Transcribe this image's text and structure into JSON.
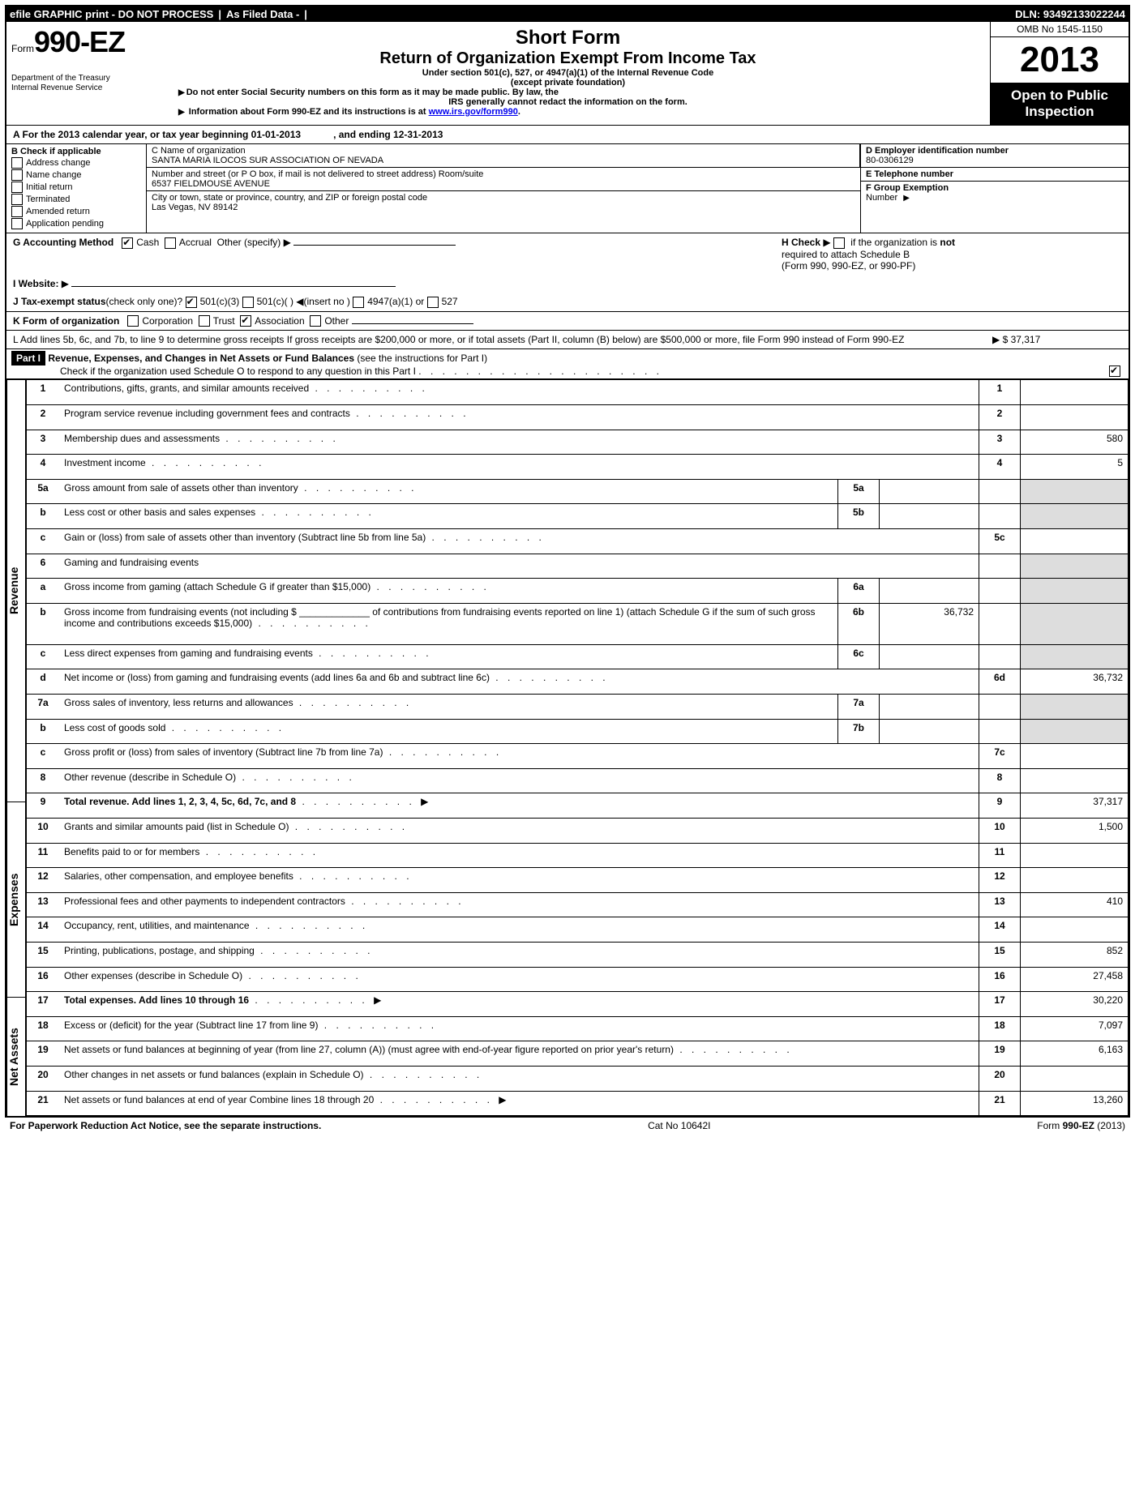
{
  "topbar": {
    "efile": "efile GRAPHIC print - DO NOT PROCESS",
    "asfiled": "As Filed Data -",
    "dln": "DLN: 93492133022244"
  },
  "header": {
    "form_prefix": "Form",
    "form_no": "990-EZ",
    "dept1": "Department of the Treasury",
    "dept2": "Internal Revenue Service",
    "title1": "Short Form",
    "title2": "Return of Organization Exempt From Income Tax",
    "sub1": "Under section 501(c), 527, or 4947(a)(1) of the Internal Revenue Code",
    "sub2": "(except private foundation)",
    "warn1": "Do not enter Social Security numbers on this form as it may be made public. By law, the",
    "warn2": "IRS generally cannot redact the information on the form.",
    "info": "Information about Form 990-EZ and its instructions is at ",
    "info_link": "www.irs.gov/form990",
    "omb": "OMB No 1545-1150",
    "year": "2013",
    "open1": "Open to Public",
    "open2": "Inspection"
  },
  "A": {
    "label": "A  For the 2013 calendar year, or tax year beginning 01-01-2013",
    "ending": ", and ending 12-31-2013"
  },
  "B": {
    "label": "B  Check if applicable",
    "items": [
      "Address change",
      "Name change",
      "Initial return",
      "Terminated",
      "Amended return",
      "Application pending"
    ]
  },
  "C": {
    "name_label": "C Name of organization",
    "name": "SANTA MARIA ILOCOS SUR ASSOCIATION OF NEVADA",
    "street_label": "Number and street (or P  O  box, if mail is not delivered to street address) Room/suite",
    "street": "6537 FIELDMOUSE AVENUE",
    "city_label": "City or town, state or province, country, and ZIP or foreign postal code",
    "city": "Las Vegas, NV  89142"
  },
  "D": {
    "label": "D Employer identification number",
    "value": "80-0306129"
  },
  "E": {
    "label": "E Telephone number",
    "value": ""
  },
  "F": {
    "label": "F Group Exemption",
    "label2": "Number"
  },
  "G": {
    "label": "G Accounting Method",
    "cash": "Cash",
    "accrual": "Accrual",
    "other": "Other (specify)"
  },
  "H": {
    "label1": "H  Check",
    "label2": "if the organization is",
    "not": "not",
    "label3": "required to attach Schedule B",
    "label4": "(Form 990, 990-EZ, or 990-PF)"
  },
  "I": {
    "label": "I Website:"
  },
  "J": {
    "label": "J Tax-exempt status",
    "sub": "(check only one)?",
    "o1": "501(c)(3)",
    "o2": "501(c)(  )",
    "ins": "(insert no )",
    "o3": "4947(a)(1) or",
    "o4": "527"
  },
  "K": {
    "label": "K Form of organization",
    "o1": "Corporation",
    "o2": "Trust",
    "o3": "Association",
    "o4": "Other"
  },
  "L": {
    "text": "L Add lines 5b, 6c, and 7b, to line 9 to determine gross receipts  If gross receipts are $200,000 or more, or if total assets (Part II, column (B) below) are $500,000 or more, file Form 990 instead of Form 990-EZ",
    "amount": "$ 37,317"
  },
  "partI": {
    "title": "Revenue, Expenses, and Changes in Net Assets or Fund Balances",
    "paren": "(see the instructions for Part I)",
    "checkline": "Check if the organization used Schedule O to respond to any question in this Part I"
  },
  "vlabels": {
    "rev": "Revenue",
    "exp": "Expenses",
    "na": "Net Assets"
  },
  "lines": {
    "l1": {
      "n": "1",
      "d": "Contributions, gifts, grants, and similar amounts received",
      "box": "1",
      "v": ""
    },
    "l2": {
      "n": "2",
      "d": "Program service revenue including government fees and contracts",
      "box": "2",
      "v": ""
    },
    "l3": {
      "n": "3",
      "d": "Membership dues and assessments",
      "box": "3",
      "v": "580"
    },
    "l4": {
      "n": "4",
      "d": "Investment income",
      "box": "4",
      "v": "5"
    },
    "l5a": {
      "n": "5a",
      "d": "Gross amount from sale of assets other than inventory",
      "mbox": "5a",
      "mv": ""
    },
    "l5b": {
      "n": "b",
      "d": "Less  cost or other basis and sales expenses",
      "mbox": "5b",
      "mv": ""
    },
    "l5c": {
      "n": "c",
      "d": "Gain or (loss) from sale of assets other than inventory (Subtract line 5b from line 5a)",
      "box": "5c",
      "v": ""
    },
    "l6": {
      "n": "6",
      "d": "Gaming and fundraising events"
    },
    "l6a": {
      "n": "a",
      "d": "Gross income from gaming (attach Schedule G if greater than $15,000)",
      "mbox": "6a",
      "mv": ""
    },
    "l6b": {
      "n": "b",
      "d": "Gross income from fundraising events (not including $ _____________ of contributions from fundraising events reported on line 1) (attach Schedule G if the sum of such gross income and contributions exceeds $15,000)",
      "mbox": "6b",
      "mv": "36,732"
    },
    "l6c": {
      "n": "c",
      "d": "Less  direct expenses from gaming and fundraising events",
      "mbox": "6c",
      "mv": ""
    },
    "l6d": {
      "n": "d",
      "d": "Net income or (loss) from gaming and fundraising events (add lines 6a and 6b and subtract line 6c)",
      "box": "6d",
      "v": "36,732"
    },
    "l7a": {
      "n": "7a",
      "d": "Gross sales of inventory, less returns and allowances",
      "mbox": "7a",
      "mv": ""
    },
    "l7b": {
      "n": "b",
      "d": "Less  cost of goods sold",
      "mbox": "7b",
      "mv": ""
    },
    "l7c": {
      "n": "c",
      "d": "Gross profit or (loss) from sales of inventory (Subtract line 7b from line 7a)",
      "box": "7c",
      "v": ""
    },
    "l8": {
      "n": "8",
      "d": "Other revenue (describe in Schedule O)",
      "box": "8",
      "v": ""
    },
    "l9": {
      "n": "9",
      "d": "Total revenue. Add lines 1, 2, 3, 4, 5c, 6d, 7c, and 8",
      "box": "9",
      "v": "37,317",
      "bold": true,
      "arrow": true
    },
    "l10": {
      "n": "10",
      "d": "Grants and similar amounts paid (list in Schedule O)",
      "box": "10",
      "v": "1,500"
    },
    "l11": {
      "n": "11",
      "d": "Benefits paid to or for members",
      "box": "11",
      "v": ""
    },
    "l12": {
      "n": "12",
      "d": "Salaries, other compensation, and employee benefits",
      "box": "12",
      "v": ""
    },
    "l13": {
      "n": "13",
      "d": "Professional fees and other payments to independent contractors",
      "box": "13",
      "v": "410"
    },
    "l14": {
      "n": "14",
      "d": "Occupancy, rent, utilities, and maintenance",
      "box": "14",
      "v": ""
    },
    "l15": {
      "n": "15",
      "d": "Printing, publications, postage, and shipping",
      "box": "15",
      "v": "852"
    },
    "l16": {
      "n": "16",
      "d": "Other expenses (describe in Schedule O)",
      "box": "16",
      "v": "27,458"
    },
    "l17": {
      "n": "17",
      "d": "Total expenses. Add lines 10 through 16",
      "box": "17",
      "v": "30,220",
      "bold": true,
      "arrow": true
    },
    "l18": {
      "n": "18",
      "d": "Excess or (deficit) for the year (Subtract line 17 from line 9)",
      "box": "18",
      "v": "7,097"
    },
    "l19": {
      "n": "19",
      "d": "Net assets or fund balances at beginning of year (from line 27, column (A)) (must agree with end-of-year figure reported on prior year's return)",
      "box": "19",
      "v": "6,163"
    },
    "l20": {
      "n": "20",
      "d": "Other changes in net assets or fund balances (explain in Schedule O)",
      "box": "20",
      "v": ""
    },
    "l21": {
      "n": "21",
      "d": "Net assets or fund balances at end of year  Combine lines 18 through 20",
      "box": "21",
      "v": "13,260",
      "arrow": true
    }
  },
  "footer": {
    "left": "For Paperwork Reduction Act Notice, see the separate instructions.",
    "mid": "Cat No 10642I",
    "right": "Form 990-EZ (2013)"
  }
}
